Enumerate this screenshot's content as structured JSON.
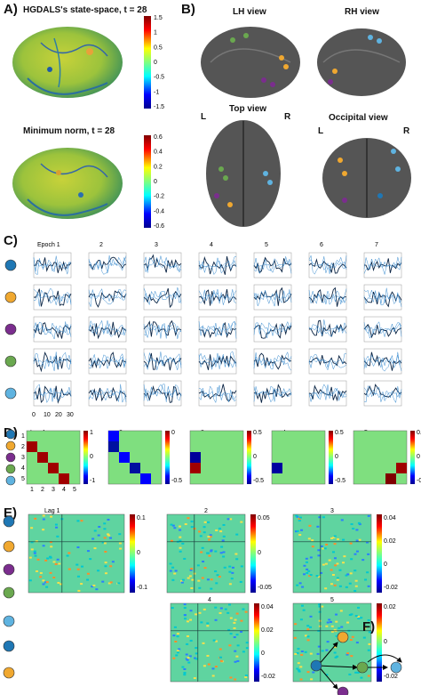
{
  "panels": {
    "A": {
      "letter": "A)",
      "title1": "HGDALS's state-space, t = 28",
      "title2": "Minimum norm, t = 28",
      "cbar1_ticks": [
        "1.5",
        "1",
        "0.5",
        "0",
        "-0.5",
        "-1",
        "-1.5"
      ],
      "cbar2_ticks": [
        "0.6",
        "0.4",
        "0.2",
        "0",
        "-0.2",
        "-0.4",
        "-0.6"
      ]
    },
    "B": {
      "letter": "B)",
      "views": [
        "LH view",
        "RH view",
        "Top view",
        "Occipital view"
      ],
      "lr_top": [
        "L",
        "R"
      ],
      "lr_occ": [
        "L",
        "R"
      ]
    },
    "C": {
      "letter": "C)",
      "epochs": [
        "Epoch 1",
        "2",
        "3",
        "4",
        "5",
        "6",
        "7"
      ],
      "xticks": [
        "0",
        "10",
        "20",
        "30"
      ]
    },
    "D": {
      "letter": "D)",
      "lags": [
        "Lag 1",
        "2",
        "3",
        "4",
        "5"
      ],
      "row_ticks": [
        "1",
        "2",
        "3",
        "4",
        "5"
      ],
      "cbar_ticks": [
        [
          "1",
          "0",
          "-1"
        ],
        [
          "0",
          "-0.5"
        ],
        [
          "0.5",
          "0",
          "-0.5"
        ],
        [
          "0.5",
          "0",
          "-0.5"
        ],
        [
          "0.1",
          "0",
          "-0.1"
        ]
      ]
    },
    "E": {
      "letter": "E)",
      "lags": [
        "Lag 1",
        "2",
        "3",
        "4",
        "5"
      ],
      "cbar_ticks": [
        [
          "0.1",
          "0",
          "-0.1"
        ],
        [
          "0.05",
          "0",
          "-0.05"
        ],
        [
          "0.04",
          "0.02",
          "0",
          "-0.02"
        ],
        [
          "0.04",
          "0.02",
          "0",
          "-0.02"
        ],
        [
          "0.02",
          "0",
          "-0.02"
        ]
      ]
    },
    "F": {
      "letter": "F)"
    }
  },
  "node_colors": [
    "#1f77b4",
    "#f0a830",
    "#7b2d8e",
    "#6aa84f",
    "#5fb3e0"
  ]
}
